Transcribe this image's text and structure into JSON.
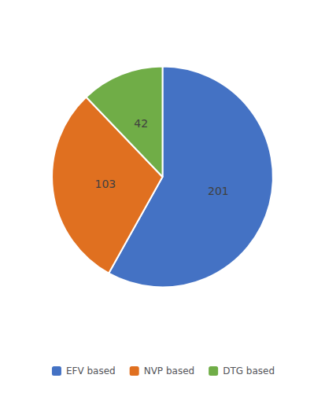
{
  "chart_data": {
    "type": "pie",
    "categories": [
      "EFV based",
      "NVP based",
      "DTG based"
    ],
    "values": [
      201,
      103,
      42
    ],
    "colors": [
      "#4472C4",
      "#E07020",
      "#70AD47"
    ],
    "data_labels": true,
    "legend": "bottom"
  }
}
